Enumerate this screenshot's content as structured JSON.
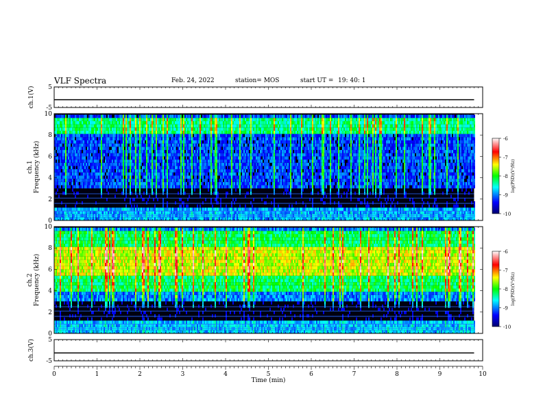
{
  "header": {
    "title": "VLF Spectra",
    "date": "Feb. 24, 2022",
    "station": "station= MOS",
    "start_label": "start  UT =",
    "start_time": "19: 40: 1"
  },
  "chart_data": [
    {
      "type": "line",
      "panel": "ch1-voltage",
      "ylabel": "ch.1(V)",
      "ylim": [
        -5,
        5
      ],
      "y_ticks": [
        "5",
        "-5"
      ],
      "xlim": [
        0,
        10
      ],
      "series": [
        {
          "x": [
            0,
            9.8
          ],
          "y": [
            -1.2,
            -1.2
          ]
        }
      ]
    },
    {
      "type": "heatmap",
      "panel": "ch1-spectrogram",
      "ylabel": "ch.1\nFrequency (kHz)",
      "ylim": [
        0,
        10
      ],
      "y_ticks": [
        "0",
        "2",
        "4",
        "6",
        "8",
        "10"
      ],
      "xlim": [
        0,
        10
      ],
      "data_extent_min": 9.8,
      "colorbar": {
        "label": "log(PSD)(V²/Hz)",
        "range": [
          -10,
          -6
        ],
        "ticks": [
          "-6",
          "-7",
          "-8",
          "-9",
          "-10"
        ]
      }
    },
    {
      "type": "heatmap",
      "panel": "ch2-spectrogram",
      "ylabel": "ch.2\nFrequency (kHz)",
      "ylim": [
        0,
        10
      ],
      "y_ticks": [
        "0",
        "2",
        "4",
        "6",
        "8",
        "10"
      ],
      "xlim": [
        0,
        10
      ],
      "data_extent_min": 9.8,
      "colorbar": {
        "label": "log(PSD)(V²/Hz)",
        "range": [
          -10,
          -6
        ],
        "ticks": [
          "-6",
          "-7",
          "-8",
          "-9",
          "-10"
        ]
      }
    },
    {
      "type": "line",
      "panel": "ch3-voltage",
      "ylabel": "ch.3(V)",
      "ylim": [
        -5,
        5
      ],
      "y_ticks": [
        "5",
        "-5"
      ],
      "xlim": [
        0,
        10
      ],
      "series": [
        {
          "x": [
            0,
            9.8
          ],
          "y": [
            -1.3,
            -1.3
          ]
        }
      ]
    }
  ],
  "xaxis": {
    "label": "Time (min)",
    "ticks": [
      "0",
      "1",
      "2",
      "3",
      "4",
      "5",
      "6",
      "7",
      "8",
      "9",
      "10"
    ]
  },
  "colors": {
    "background": "#000000",
    "axes": "#000000",
    "colormap": [
      "#000080",
      "#0000ff",
      "#00ffff",
      "#00ff00",
      "#ffff00",
      "#ff0000",
      "#ffffff"
    ]
  }
}
